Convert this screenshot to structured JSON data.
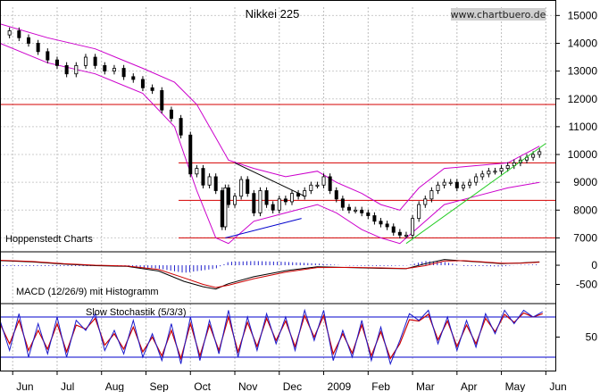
{
  "chart_data": {
    "type": "line",
    "title": "Nikkei 225",
    "watermark": "www.chartbuero.de",
    "credit": "Hoppenstedt Charts",
    "x_axis": {
      "tick_labels": [
        "Jun",
        "Jul",
        "Aug",
        "Sep",
        "Oct",
        "Nov",
        "Dec",
        "2009",
        "Feb",
        "Mar",
        "Apr",
        "May",
        "Jun"
      ]
    },
    "price_panel": {
      "y_ticks": [
        15000,
        14000,
        13000,
        12000,
        11000,
        10000,
        9000,
        8000,
        7000
      ],
      "ylim": [
        6500,
        15300
      ],
      "horizontal_levels": [
        11800,
        9700,
        8350,
        7000
      ],
      "series_close": [
        [
          0,
          14300
        ],
        [
          3,
          14450
        ],
        [
          6,
          14200
        ],
        [
          9,
          14000
        ],
        [
          12,
          13700
        ],
        [
          15,
          13400
        ],
        [
          18,
          13200
        ],
        [
          21,
          12900
        ],
        [
          24,
          13200
        ],
        [
          27,
          13500
        ],
        [
          30,
          13200
        ],
        [
          33,
          13000
        ],
        [
          36,
          13100
        ],
        [
          39,
          12800
        ],
        [
          42,
          12700
        ],
        [
          45,
          12400
        ],
        [
          48,
          12300
        ],
        [
          51,
          11600
        ],
        [
          54,
          11300
        ],
        [
          57,
          10700
        ],
        [
          60,
          9300
        ],
        [
          62,
          9500
        ],
        [
          64,
          8900
        ],
        [
          66,
          9200
        ],
        [
          68,
          8700
        ],
        [
          70,
          7400
        ],
        [
          71,
          8800
        ],
        [
          72,
          8200
        ],
        [
          74,
          8500
        ],
        [
          76,
          9100
        ],
        [
          78,
          8600
        ],
        [
          80,
          7900
        ],
        [
          82,
          8700
        ],
        [
          84,
          8200
        ],
        [
          86,
          8000
        ],
        [
          88,
          8400
        ],
        [
          90,
          8300
        ],
        [
          92,
          8600
        ],
        [
          94,
          8500
        ],
        [
          96,
          8700
        ],
        [
          98,
          8900
        ],
        [
          100,
          8900
        ],
        [
          102,
          9200
        ],
        [
          104,
          8700
        ],
        [
          106,
          8400
        ],
        [
          108,
          8100
        ],
        [
          110,
          8000
        ],
        [
          112,
          8000
        ],
        [
          114,
          7900
        ],
        [
          116,
          7800
        ],
        [
          118,
          7600
        ],
        [
          120,
          7500
        ],
        [
          122,
          7400
        ],
        [
          124,
          7200
        ],
        [
          126,
          7100
        ],
        [
          128,
          7100
        ],
        [
          130,
          7700
        ],
        [
          132,
          8200
        ],
        [
          134,
          8400
        ],
        [
          136,
          8700
        ],
        [
          138,
          8900
        ],
        [
          140,
          9000
        ],
        [
          142,
          9000
        ],
        [
          144,
          8800
        ],
        [
          146,
          8900
        ],
        [
          148,
          9000
        ],
        [
          150,
          9200
        ],
        [
          152,
          9300
        ],
        [
          154,
          9400
        ],
        [
          156,
          9400
        ],
        [
          158,
          9500
        ],
        [
          160,
          9600
        ],
        [
          162,
          9700
        ],
        [
          164,
          9800
        ],
        [
          166,
          9900
        ],
        [
          168,
          10000
        ],
        [
          170,
          10100
        ]
      ],
      "bollinger_upper": [
        [
          0,
          14700
        ],
        [
          15,
          14200
        ],
        [
          30,
          13800
        ],
        [
          45,
          13100
        ],
        [
          55,
          12600
        ],
        [
          62,
          11800
        ],
        [
          68,
          10600
        ],
        [
          72,
          9800
        ],
        [
          80,
          9500
        ],
        [
          90,
          9200
        ],
        [
          100,
          9400
        ],
        [
          106,
          9000
        ],
        [
          114,
          8600
        ],
        [
          120,
          8200
        ],
        [
          126,
          8000
        ],
        [
          132,
          8800
        ],
        [
          140,
          9500
        ],
        [
          150,
          9600
        ],
        [
          160,
          9700
        ],
        [
          170,
          10300
        ]
      ],
      "bollinger_lower": [
        [
          0,
          14000
        ],
        [
          15,
          13300
        ],
        [
          30,
          12900
        ],
        [
          45,
          12200
        ],
        [
          55,
          11000
        ],
        [
          62,
          8700
        ],
        [
          68,
          7000
        ],
        [
          72,
          6800
        ],
        [
          80,
          7600
        ],
        [
          90,
          7900
        ],
        [
          100,
          8200
        ],
        [
          106,
          7900
        ],
        [
          114,
          7300
        ],
        [
          120,
          7000
        ],
        [
          126,
          6800
        ],
        [
          132,
          7400
        ],
        [
          140,
          8200
        ],
        [
          150,
          8500
        ],
        [
          160,
          8800
        ],
        [
          170,
          9000
        ]
      ],
      "trendlines": [
        {
          "name": "triangle-upper",
          "points": [
            [
              74,
              9700
            ],
            [
              96,
              8500
            ]
          ]
        },
        {
          "name": "triangle-lower",
          "points": [
            [
              71,
              7000
            ],
            [
              95,
              7700
            ]
          ]
        },
        {
          "name": "uptrend",
          "points": [
            [
              128,
              6800
            ],
            [
              172,
              10400
            ]
          ]
        }
      ]
    },
    "macd_panel": {
      "label": "MACD (12/26/9) mit Histogramm",
      "y_ticks": [
        0,
        -500
      ],
      "ylim": [
        -1000,
        350
      ],
      "macd": [
        [
          0,
          120
        ],
        [
          10,
          90
        ],
        [
          20,
          30
        ],
        [
          30,
          -10
        ],
        [
          40,
          -30
        ],
        [
          50,
          -150
        ],
        [
          58,
          -420
        ],
        [
          64,
          -560
        ],
        [
          68,
          -620
        ],
        [
          72,
          -480
        ],
        [
          80,
          -300
        ],
        [
          90,
          -140
        ],
        [
          100,
          -40
        ],
        [
          110,
          -60
        ],
        [
          120,
          -80
        ],
        [
          128,
          -90
        ],
        [
          134,
          40
        ],
        [
          140,
          150
        ],
        [
          146,
          110
        ],
        [
          152,
          80
        ],
        [
          158,
          40
        ],
        [
          164,
          60
        ],
        [
          170,
          90
        ]
      ],
      "signal": [
        [
          0,
          130
        ],
        [
          10,
          100
        ],
        [
          20,
          40
        ],
        [
          30,
          0
        ],
        [
          40,
          -20
        ],
        [
          50,
          -110
        ],
        [
          58,
          -330
        ],
        [
          64,
          -500
        ],
        [
          68,
          -580
        ],
        [
          72,
          -520
        ],
        [
          80,
          -350
        ],
        [
          90,
          -180
        ],
        [
          100,
          -60
        ],
        [
          110,
          -55
        ],
        [
          120,
          -70
        ],
        [
          128,
          -85
        ],
        [
          134,
          -10
        ],
        [
          140,
          110
        ],
        [
          146,
          120
        ],
        [
          152,
          90
        ],
        [
          158,
          55
        ],
        [
          164,
          55
        ],
        [
          170,
          80
        ]
      ]
    },
    "stochastic_panel": {
      "label": "Slow Stochastik (5/3/3)",
      "y_ticks": [
        50
      ],
      "levels": [
        80,
        20
      ],
      "ylim": [
        0,
        100
      ],
      "k": [
        [
          0,
          75
        ],
        [
          3,
          30
        ],
        [
          6,
          85
        ],
        [
          9,
          20
        ],
        [
          12,
          70
        ],
        [
          15,
          25
        ],
        [
          18,
          80
        ],
        [
          21,
          20
        ],
        [
          24,
          75
        ],
        [
          27,
          60
        ],
        [
          30,
          85
        ],
        [
          33,
          30
        ],
        [
          36,
          60
        ],
        [
          39,
          25
        ],
        [
          42,
          75
        ],
        [
          45,
          20
        ],
        [
          48,
          55
        ],
        [
          51,
          15
        ],
        [
          54,
          70
        ],
        [
          57,
          10
        ],
        [
          60,
          80
        ],
        [
          63,
          15
        ],
        [
          66,
          75
        ],
        [
          69,
          25
        ],
        [
          72,
          90
        ],
        [
          75,
          20
        ],
        [
          78,
          80
        ],
        [
          81,
          30
        ],
        [
          84,
          85
        ],
        [
          87,
          40
        ],
        [
          90,
          80
        ],
        [
          93,
          30
        ],
        [
          96,
          90
        ],
        [
          99,
          45
        ],
        [
          102,
          90
        ],
        [
          105,
          15
        ],
        [
          108,
          60
        ],
        [
          111,
          20
        ],
        [
          114,
          75
        ],
        [
          117,
          15
        ],
        [
          120,
          65
        ],
        [
          123,
          10
        ],
        [
          126,
          45
        ],
        [
          129,
          85
        ],
        [
          132,
          75
        ],
        [
          135,
          90
        ],
        [
          138,
          40
        ],
        [
          141,
          80
        ],
        [
          144,
          30
        ],
        [
          147,
          75
        ],
        [
          150,
          35
        ],
        [
          153,
          85
        ],
        [
          156,
          55
        ],
        [
          159,
          90
        ],
        [
          162,
          70
        ],
        [
          165,
          90
        ],
        [
          168,
          80
        ],
        [
          171,
          88
        ]
      ],
      "d": [
        [
          0,
          70
        ],
        [
          3,
          40
        ],
        [
          6,
          75
        ],
        [
          9,
          30
        ],
        [
          12,
          60
        ],
        [
          15,
          32
        ],
        [
          18,
          70
        ],
        [
          21,
          28
        ],
        [
          24,
          68
        ],
        [
          27,
          62
        ],
        [
          30,
          78
        ],
        [
          33,
          38
        ],
        [
          36,
          55
        ],
        [
          39,
          32
        ],
        [
          42,
          65
        ],
        [
          45,
          28
        ],
        [
          48,
          50
        ],
        [
          51,
          22
        ],
        [
          54,
          60
        ],
        [
          57,
          18
        ],
        [
          60,
          70
        ],
        [
          63,
          22
        ],
        [
          66,
          68
        ],
        [
          69,
          30
        ],
        [
          72,
          80
        ],
        [
          75,
          28
        ],
        [
          78,
          72
        ],
        [
          81,
          36
        ],
        [
          84,
          78
        ],
        [
          87,
          45
        ],
        [
          90,
          74
        ],
        [
          93,
          36
        ],
        [
          96,
          82
        ],
        [
          99,
          50
        ],
        [
          102,
          82
        ],
        [
          105,
          25
        ],
        [
          108,
          55
        ],
        [
          111,
          26
        ],
        [
          114,
          68
        ],
        [
          117,
          22
        ],
        [
          120,
          58
        ],
        [
          123,
          18
        ],
        [
          126,
          40
        ],
        [
          129,
          76
        ],
        [
          132,
          74
        ],
        [
          135,
          84
        ],
        [
          138,
          46
        ],
        [
          141,
          74
        ],
        [
          144,
          36
        ],
        [
          147,
          68
        ],
        [
          150,
          40
        ],
        [
          153,
          78
        ],
        [
          156,
          58
        ],
        [
          159,
          84
        ],
        [
          162,
          72
        ],
        [
          165,
          86
        ],
        [
          168,
          80
        ],
        [
          171,
          85
        ]
      ]
    }
  }
}
